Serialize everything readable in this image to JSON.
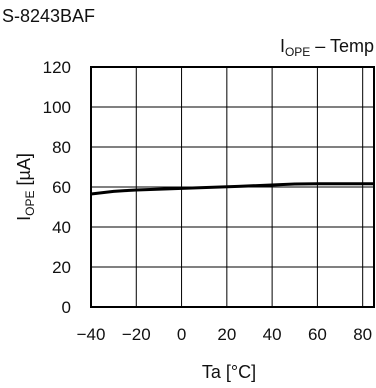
{
  "document_title": "S-8243BAF",
  "chart_data": {
    "type": "line",
    "title": {
      "main": "I",
      "sub": "OPE",
      "rest": " – Temp"
    },
    "xlabel": "Ta [°C]",
    "ylabel": {
      "main": "I",
      "sub": "OPE",
      "rest": " [µA]"
    },
    "xlim": [
      -40,
      85
    ],
    "ylim": [
      0,
      120
    ],
    "x_ticks": [
      -40,
      -20,
      0,
      20,
      40,
      60,
      80
    ],
    "x_tick_labels": [
      "−40",
      "−20",
      "0",
      "20",
      "40",
      "60",
      "80"
    ],
    "y_ticks": [
      0,
      20,
      40,
      60,
      80,
      100,
      120
    ],
    "grid": true,
    "series": [
      {
        "x": [
          -40,
          -30,
          -25,
          -20,
          0,
          25,
          50,
          60,
          85
        ],
        "y": [
          56.5,
          57.8,
          58.2,
          58.5,
          59.3,
          60.3,
          61.5,
          61.6,
          61.6
        ],
        "color": "#000000"
      }
    ]
  }
}
